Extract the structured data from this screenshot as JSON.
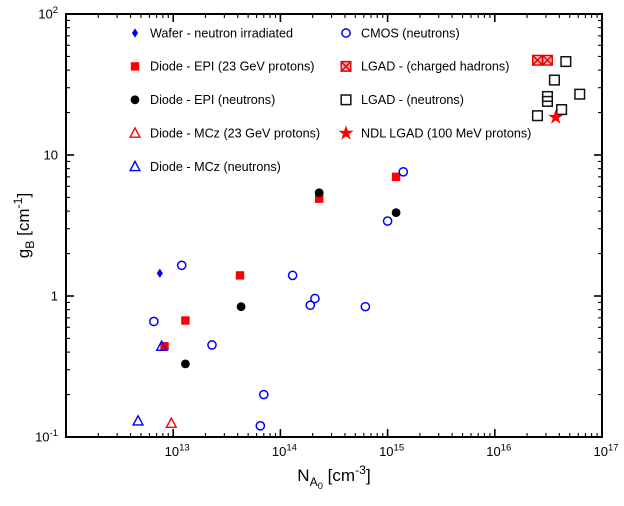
{
  "chart_data": {
    "type": "scatter",
    "title": "",
    "xscale": "log",
    "yscale": "log",
    "xlim": [
      1000000000000.0,
      1e+17
    ],
    "ylim": [
      0.1,
      100
    ],
    "grid": false,
    "legend_position": "top",
    "x_tick_label_exponents": [
      13,
      14,
      15,
      16,
      17
    ],
    "y_tick_label_exponents": [
      -1,
      0,
      1,
      2
    ],
    "xlabel_parts": [
      {
        "t": "N",
        "style": "main"
      },
      {
        "t": "A",
        "style": "sub"
      },
      {
        "t": "0",
        "style": "sub2"
      },
      {
        "t": " [cm",
        "style": "main"
      },
      {
        "t": "-3",
        "style": "sup"
      },
      {
        "t": "]",
        "style": "main"
      }
    ],
    "ylabel_parts": [
      {
        "t": "g",
        "style": "main"
      },
      {
        "t": "B",
        "style": "sub"
      },
      {
        "t": " [cm",
        "style": "main"
      },
      {
        "t": "-1",
        "style": "sup"
      },
      {
        "t": "]",
        "style": "main"
      }
    ],
    "colors": {
      "blue": "#0000ff",
      "red": "#ff0000",
      "black": "#000000",
      "lgad_square": "#111111",
      "crossed_fill": "#ffaaaa",
      "crossed_stroke": "#dd0000"
    },
    "series": [
      {
        "name": "Wafer - neutron irradiated",
        "marker": "diamond-filled",
        "color": "#0000ff",
        "legend_column": 0,
        "points": [
          [
            7500000000000.0,
            1.45
          ]
        ]
      },
      {
        "name": "Diode - EPI (23 GeV protons)",
        "marker": "square-filled",
        "color": "#ff0000",
        "legend_column": 0,
        "points": [
          [
            8300000000000.0,
            0.44
          ],
          [
            13000000000000.0,
            0.67
          ],
          [
            42000000000000.0,
            1.4
          ],
          [
            230000000000000.0,
            4.9
          ],
          [
            1200000000000000.0,
            7.0
          ]
        ]
      },
      {
        "name": "Diode - EPI (neutrons)",
        "marker": "circle-filled",
        "color": "#000000",
        "legend_column": 0,
        "points": [
          [
            13000000000000.0,
            0.33
          ],
          [
            43000000000000.0,
            0.84
          ],
          [
            230000000000000.0,
            5.4
          ],
          [
            1200000000000000.0,
            3.9
          ]
        ]
      },
      {
        "name": "Diode - MCz (23 GeV protons)",
        "marker": "triangle-open",
        "color": "#ff0000",
        "legend_column": 0,
        "points": [
          [
            9600000000000.0,
            0.125
          ]
        ]
      },
      {
        "name": "Diode - MCz (neutrons)",
        "marker": "triangle-open",
        "color": "#0000ff",
        "legend_column": 0,
        "points": [
          [
            4700000000000.0,
            0.13
          ],
          [
            7800000000000.0,
            0.44
          ]
        ]
      },
      {
        "name": "CMOS (neutrons)",
        "marker": "circle-open",
        "color": "#0000ff",
        "legend_column": 1,
        "points": [
          [
            6600000000000.0,
            0.66
          ],
          [
            12000000000000.0,
            1.65
          ],
          [
            23000000000000.0,
            0.45
          ],
          [
            65000000000000.0,
            0.12
          ],
          [
            70000000000000.0,
            0.2
          ],
          [
            130000000000000.0,
            1.4
          ],
          [
            190000000000000.0,
            0.86
          ],
          [
            210000000000000.0,
            0.96
          ],
          [
            620000000000000.0,
            0.84
          ],
          [
            1000000000000000.0,
            3.4
          ],
          [
            1400000000000000.0,
            7.6
          ]
        ]
      },
      {
        "name": "LGAD - (charged hadrons)",
        "marker": "square-crossed",
        "color": "#dd0000",
        "fill": "#ffaaaa",
        "legend_column": 1,
        "points": [
          [
            2.5e+16,
            47
          ],
          [
            3.1e+16,
            47
          ]
        ]
      },
      {
        "name": "LGAD - (neutrons)",
        "marker": "square-open",
        "color": "#111111",
        "legend_column": 1,
        "points": [
          [
            2.5e+16,
            19
          ],
          [
            3.1e+16,
            24
          ],
          [
            3.1e+16,
            26
          ],
          [
            3.6e+16,
            34
          ],
          [
            4.2e+16,
            21
          ],
          [
            4.6e+16,
            46
          ],
          [
            6.2e+16,
            27
          ]
        ]
      },
      {
        "name": "NDL LGAD (100 MeV protons)",
        "marker": "star-filled",
        "color": "#ff0000",
        "legend_column": 1,
        "points": [
          [
            3.7e+16,
            18.5
          ]
        ]
      }
    ]
  }
}
